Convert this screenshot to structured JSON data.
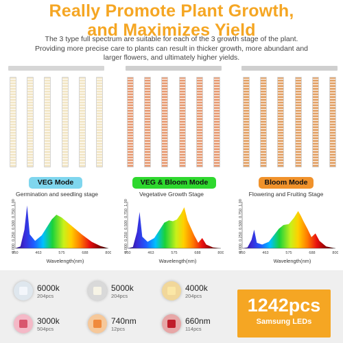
{
  "headline": {
    "line1": "Really Promote Plant Growth,",
    "line2": "and Maximizes Yield"
  },
  "intro": {
    "line1": "The 3 type full spectrum are suitable for each of the 3 growth stage of the plant.",
    "line2": "Providing more precise care to plants can result in thicker growth, more abundant and",
    "line3": "larger flowers, and ultimately higher yields."
  },
  "modes": [
    {
      "label": "VEG Mode",
      "stage": "Germination and seedling stage",
      "color": "#7fd6ee",
      "strip_color": "#f3e7c8"
    },
    {
      "label": "VEG & Bloom Mode",
      "stage": "Vegetative Growth Stage",
      "color": "#2ed82e",
      "strip_color": "#e8a07a"
    },
    {
      "label": "Bloom Mode",
      "stage": "Flowering and Fruiting Stage",
      "color": "#f0922b",
      "strip_color": "#e4a66e"
    }
  ],
  "spectrum_axis": {
    "xlabel": "Wavelength(nm)",
    "x_ticks": [
      "350",
      "463",
      "575",
      "688",
      "800"
    ],
    "y_ticks": [
      "0.000",
      "0.250",
      "0.500",
      "0.750",
      "1.000"
    ]
  },
  "chips": [
    {
      "name": "6000k",
      "count": "204pcs",
      "color": "#dfe7ee",
      "core": "#f3f6fb"
    },
    {
      "name": "5000k",
      "count": "204pcs",
      "color": "#d9d9d9",
      "core": "#f7f4e6"
    },
    {
      "name": "4000k",
      "count": "204pcs",
      "color": "#f1d79a",
      "core": "#fbe7a6"
    },
    {
      "name": "3000k",
      "count": "504pcs",
      "color": "#f4b9c7",
      "core": "#d9566e"
    },
    {
      "name": "740nm",
      "count": "12pcs",
      "color": "#f6c89a",
      "core": "#f08a3c"
    },
    {
      "name": "660nm",
      "count": "114pcs",
      "color": "#e7a7a7",
      "core": "#c01d2a"
    }
  ],
  "total": {
    "count": "1242pcs",
    "label": "Samsung LEDs"
  }
}
